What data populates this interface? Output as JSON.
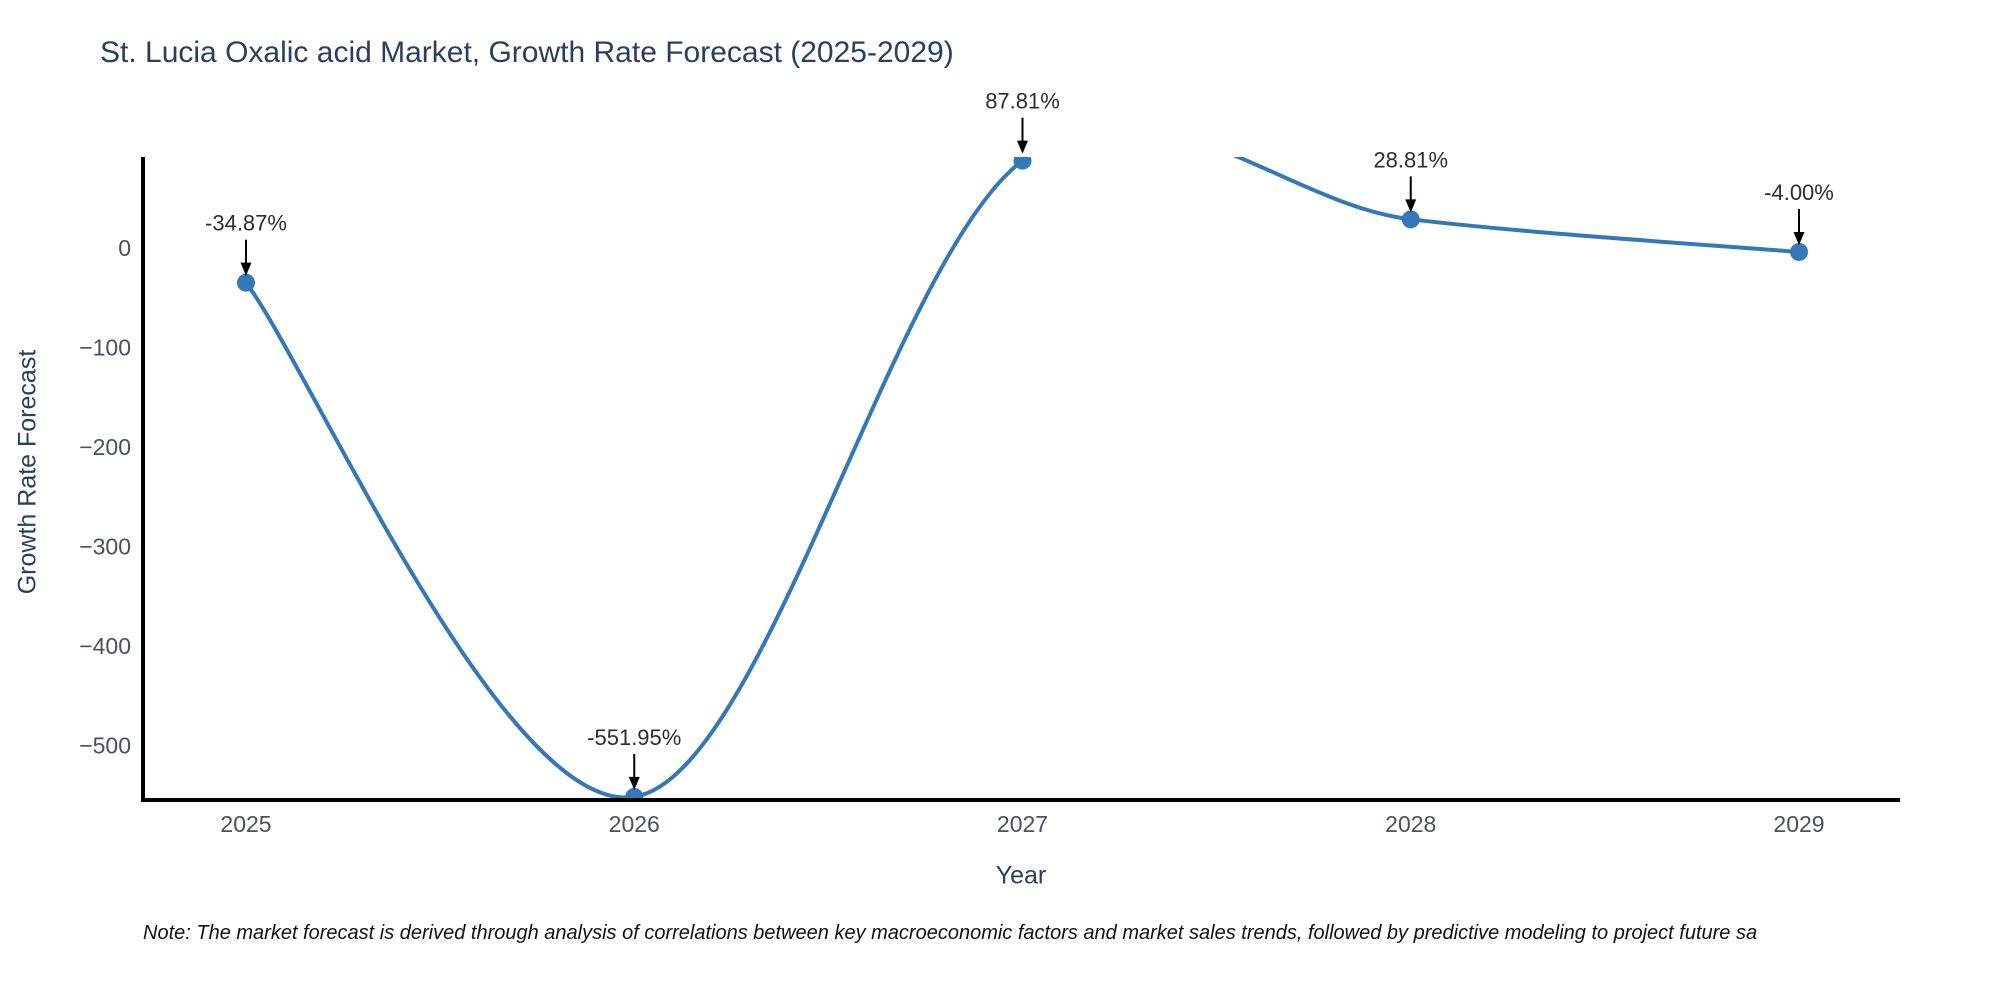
{
  "title": "St. Lucia Oxalic acid Market, Growth Rate Forecast (2025-2029)",
  "note": "Note: The market forecast is derived through analysis of correlations between key macroeconomic factors and market sales trends, followed by predictive modeling to project future sa",
  "chart_data": {
    "type": "line",
    "title": "St. Lucia Oxalic acid Market, Growth Rate Forecast (2025-2029)",
    "xlabel": "Year",
    "ylabel": "Growth Rate Forecast",
    "x": [
      2025,
      2026,
      2027,
      2028,
      2029
    ],
    "values": [
      -34.87,
      -551.95,
      87.81,
      28.81,
      -4.0
    ],
    "point_labels": [
      "-34.87%",
      "-551.95%",
      "87.81%",
      "28.81%",
      "-4.00%"
    ],
    "xtick_labels": [
      "2025",
      "2026",
      "2027",
      "2028",
      "2029"
    ],
    "ytick_values": [
      0,
      -100,
      -200,
      -300,
      -400,
      -500
    ],
    "ytick_labels": [
      "0",
      "−100",
      "−200",
      "−300",
      "−400",
      "−500"
    ],
    "ylim": [
      -555,
      90
    ],
    "grid": false,
    "line_shape": "spline",
    "line_color": "#3578b6",
    "marker_color": "#3578b6",
    "axis_color": "#000000",
    "annotation_arrow_color": "#000000",
    "legend": "none"
  }
}
